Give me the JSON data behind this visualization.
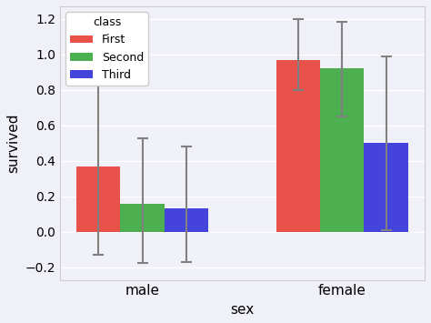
{
  "groups": [
    "male",
    "female"
  ],
  "classes": [
    "First",
    "Second",
    "Third"
  ],
  "colors": [
    "#e8524a",
    "#4caf50",
    "#4444dd"
  ],
  "bar_values": {
    "male": [
      0.369,
      0.157,
      0.135
    ],
    "female": [
      0.968,
      0.921,
      0.5
    ]
  },
  "ci_lower": {
    "male": [
      -0.131,
      -0.173,
      -0.17
    ],
    "female": [
      0.798,
      0.651,
      0.01
    ]
  },
  "ci_upper": {
    "male": [
      0.859,
      0.527,
      0.48
    ],
    "female": [
      1.198,
      1.181,
      0.99
    ]
  },
  "xlabel": "sex",
  "ylabel": "survived",
  "legend_title": "class",
  "ylim": [
    -0.27,
    1.27
  ],
  "yticks": [
    -0.2,
    0.0,
    0.2,
    0.4,
    0.6,
    0.8,
    1.0,
    1.2
  ],
  "bar_width": 0.22,
  "group_centers": [
    0.0,
    1.0
  ],
  "background_color": "#f0f0f8",
  "grid_color": "white",
  "capsize": 4,
  "error_color": "gray"
}
